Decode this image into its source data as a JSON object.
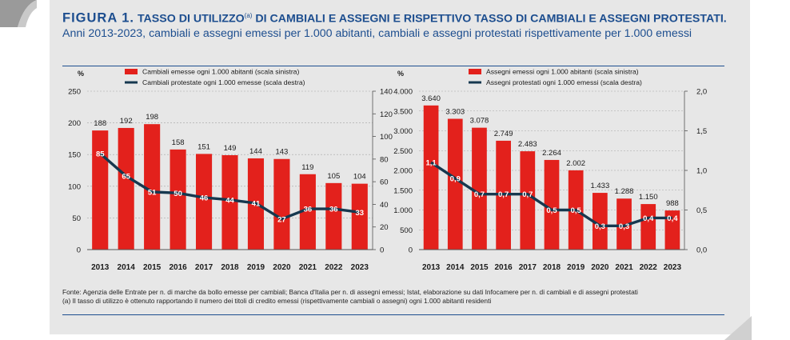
{
  "figure": {
    "label": "FIGURA 1.",
    "title_main": "TASSO DI UTILIZZO",
    "title_sup": "(a)",
    "title_rest": " DI CAMBIALI E ASSEGNI E RISPETTIVO TASSO DI CAMBIALI E ASSEGNI PROTESTATI.",
    "subtitle": " Anni 2013-2023, cambiali e assegni emessi per 1.000 abitanti, cambiali e assegni protestati rispettivamente per 1.000 emessi"
  },
  "notes": {
    "source": "Fonte: Agenzia delle Entrate per n. di marche da bollo emesse per cambiali; Banca d'Italia per n. di assegni emessi; Istat, elaborazione su dati Infocamere per n. di cambiali e di assegni protestati",
    "footnote": "(a) Il tasso di utilizzo è ottenuto rapportando il numero dei titoli di credito emessi (rispettivamente cambiali o assegni) ogni 1.000 abitanti residenti"
  },
  "colors": {
    "bar": "#e3211c",
    "line": "#16384f",
    "title": "#1d4e8f",
    "panel": "#e7e7e7"
  },
  "chart_data": [
    {
      "type": "bar",
      "y_unit_label": "%",
      "categories": [
        "2013",
        "2014",
        "2015",
        "2016",
        "2017",
        "2018",
        "2019",
        "2020",
        "2021",
        "2022",
        "2023"
      ],
      "series": [
        {
          "name": "Cambiali emesse ogni 1.000 abitanti (scala sinistra)",
          "kind": "bar",
          "axis": "left",
          "values": [
            188,
            192,
            198,
            158,
            151,
            149,
            144,
            143,
            119,
            105,
            104
          ],
          "labels": [
            "188",
            "192",
            "198",
            "158",
            "151",
            "149",
            "144",
            "143",
            "119",
            "105",
            "104"
          ]
        },
        {
          "name": "Cambiali protestate ogni 1.000 emesse (scala destra)",
          "kind": "line",
          "axis": "right",
          "values": [
            85,
            65,
            51,
            50,
            46,
            44,
            41,
            27,
            36,
            36,
            33
          ],
          "labels": [
            "85",
            "65",
            "51",
            "50",
            "46",
            "44",
            "41",
            "27",
            "36",
            "36",
            "33"
          ]
        }
      ],
      "left_axis": {
        "range": [
          0,
          250
        ],
        "ticks": [
          0,
          50,
          100,
          150,
          200,
          250
        ],
        "tick_labels": [
          "0",
          "50",
          "100",
          "150",
          "200",
          "250"
        ]
      },
      "right_axis": {
        "range": [
          0,
          140
        ],
        "ticks": [
          0,
          20,
          40,
          60,
          80,
          100,
          120,
          140
        ],
        "tick_labels": [
          "0",
          "20",
          "40",
          "60",
          "80",
          "100",
          "120",
          "140"
        ]
      },
      "grid": true,
      "legend_position": "top"
    },
    {
      "type": "bar",
      "y_unit_label": "%",
      "categories": [
        "2013",
        "2014",
        "2015",
        "2016",
        "2017",
        "2018",
        "2019",
        "2020",
        "2021",
        "2022",
        "2023"
      ],
      "series": [
        {
          "name": "Assegni emessi ogni 1.000 abitanti (scala sinistra)",
          "kind": "bar",
          "axis": "left",
          "values": [
            3640,
            3303,
            3078,
            2749,
            2483,
            2264,
            2002,
            1433,
            1288,
            1150,
            988
          ],
          "labels": [
            "3.640",
            "3.303",
            "3.078",
            "2.749",
            "2.483",
            "2.264",
            "2.002",
            "1.433",
            "1.288",
            "1.150",
            "988"
          ]
        },
        {
          "name": "Assegni protestati ogni 1.000 emessi (scala destra)",
          "kind": "line",
          "axis": "right",
          "values": [
            1.1,
            0.9,
            0.7,
            0.7,
            0.7,
            0.5,
            0.5,
            0.3,
            0.3,
            0.4,
            0.4
          ],
          "labels": [
            "1,1",
            "0,9",
            "0,7",
            "0,7",
            "0,7",
            "0,5",
            "0,5",
            "0,3",
            "0,3",
            "0,4",
            "0,4"
          ]
        }
      ],
      "left_axis": {
        "range": [
          0,
          4000
        ],
        "ticks": [
          0,
          500,
          1000,
          1500,
          2000,
          2500,
          3000,
          3500,
          4000
        ],
        "tick_labels": [
          "0",
          "500",
          "1.000",
          "1.500",
          "2.000",
          "2.500",
          "3.000",
          "3.500",
          "4.000"
        ]
      },
      "right_axis": {
        "range": [
          0,
          2
        ],
        "ticks": [
          0,
          0.5,
          1,
          1.5,
          2
        ],
        "tick_labels": [
          "0,0",
          "0,5",
          "1,0",
          "1,5",
          "2,0"
        ]
      },
      "grid": true,
      "legend_position": "top"
    }
  ]
}
